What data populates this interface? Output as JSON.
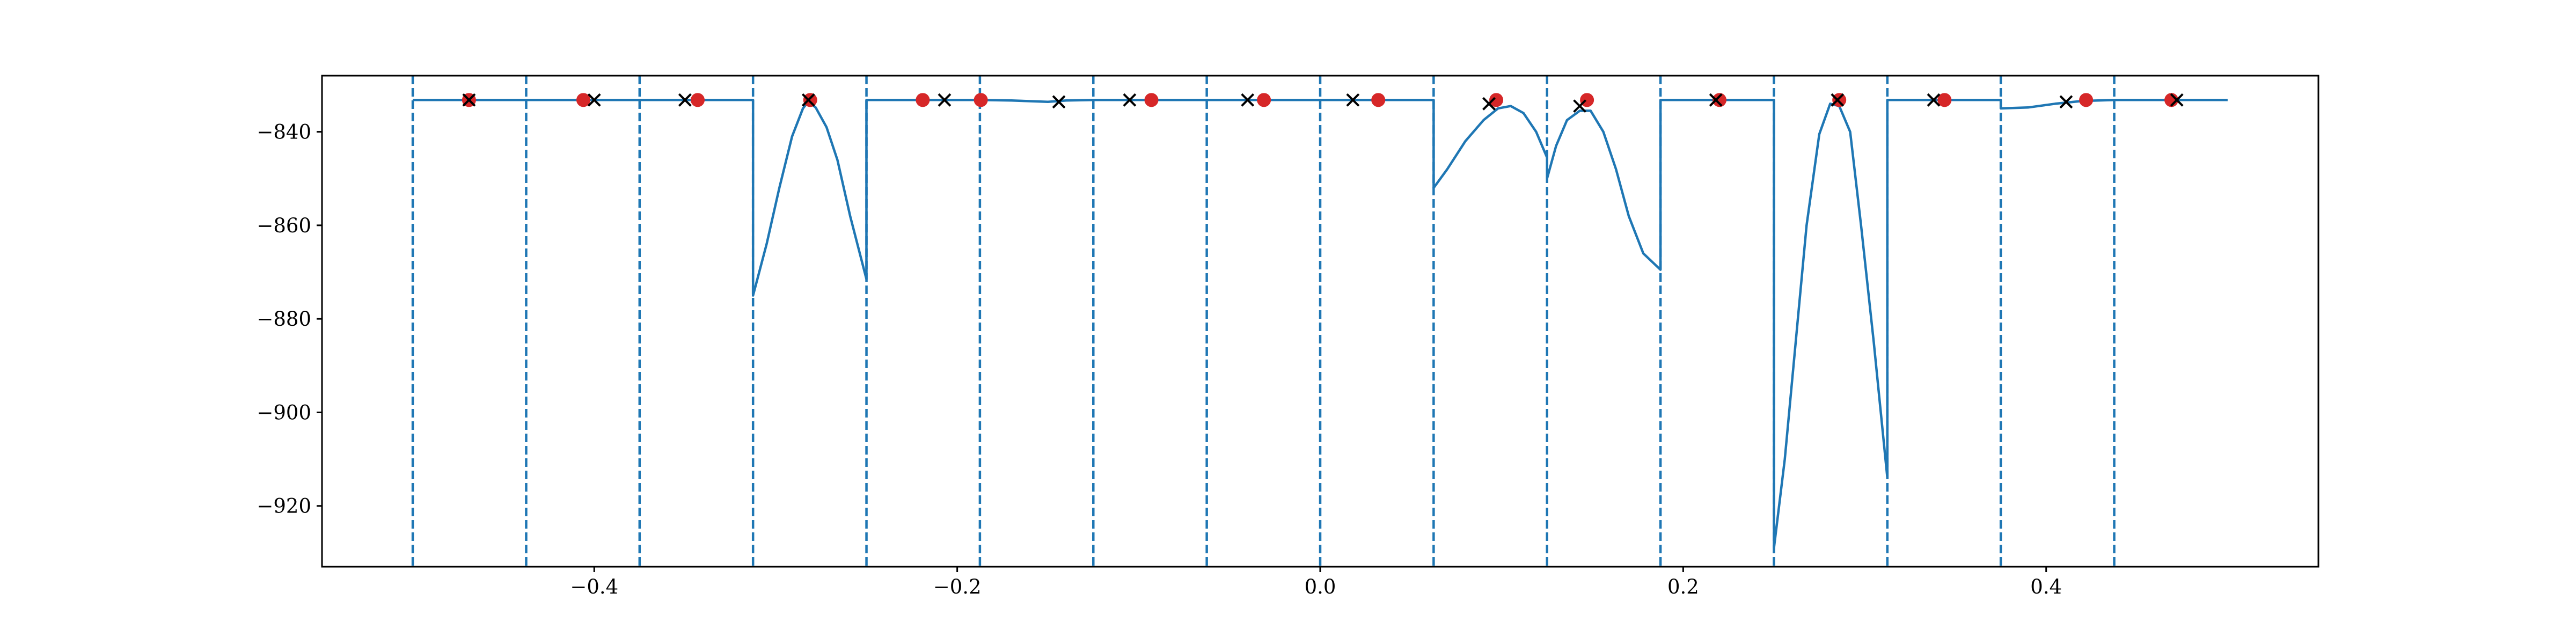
{
  "chart_data": {
    "type": "line",
    "title": "",
    "xlabel": "",
    "ylabel": "",
    "xlim": [
      -0.55,
      0.55
    ],
    "ylim": [
      -933,
      -828
    ],
    "grid": false,
    "legend": "none",
    "x_ticks": [
      -0.4,
      -0.2,
      0.0,
      0.2,
      0.4
    ],
    "x_tick_labels": [
      "−0.4",
      "−0.2",
      "0.0",
      "0.2",
      "0.4"
    ],
    "y_ticks": [
      -840,
      -860,
      -880,
      -900,
      -920
    ],
    "y_tick_labels": [
      "−840",
      "−860",
      "−880",
      "−900",
      "−920"
    ],
    "colors": {
      "line": "#1f77b4",
      "dashed": "#1f77b4",
      "dot": "#d62728",
      "cross": "#000000"
    },
    "series": [
      {
        "role": "curve",
        "points": [
          [
            -0.5,
            -833.2
          ],
          [
            -0.3125,
            -833.2
          ],
          [
            -0.3125,
            -875.0
          ],
          [
            -0.305,
            -864.0
          ],
          [
            -0.298,
            -852.0
          ],
          [
            -0.291,
            -841.0
          ],
          [
            -0.285,
            -835.0
          ],
          [
            -0.282,
            -833.5
          ],
          [
            -0.278,
            -834.8
          ],
          [
            -0.272,
            -839.0
          ],
          [
            -0.266,
            -846.0
          ],
          [
            -0.259,
            -858.0
          ],
          [
            -0.25,
            -871.5
          ],
          [
            -0.25,
            -833.2
          ],
          [
            -0.1875,
            -833.2
          ],
          [
            -0.17,
            -833.3
          ],
          [
            -0.15,
            -833.6
          ],
          [
            -0.14,
            -833.3
          ],
          [
            -0.125,
            -833.2
          ],
          [
            0.0625,
            -833.2
          ],
          [
            0.0625,
            -852.0
          ],
          [
            0.07,
            -848.0
          ],
          [
            0.08,
            -842.0
          ],
          [
            0.09,
            -837.5
          ],
          [
            0.098,
            -835.0
          ],
          [
            0.105,
            -834.5
          ],
          [
            0.112,
            -836.0
          ],
          [
            0.119,
            -840.0
          ],
          [
            0.125,
            -845.5
          ],
          [
            0.125,
            -850.0
          ],
          [
            0.13,
            -843.0
          ],
          [
            0.136,
            -837.5
          ],
          [
            0.143,
            -835.5
          ],
          [
            0.149,
            -835.5
          ],
          [
            0.156,
            -840.0
          ],
          [
            0.163,
            -848.0
          ],
          [
            0.17,
            -858.0
          ],
          [
            0.178,
            -866.0
          ],
          [
            0.1875,
            -869.5
          ],
          [
            0.1875,
            -833.2
          ],
          [
            0.25,
            -833.2
          ],
          [
            0.25,
            -929.0
          ],
          [
            0.256,
            -910.0
          ],
          [
            0.262,
            -885.0
          ],
          [
            0.268,
            -860.0
          ],
          [
            0.275,
            -840.5
          ],
          [
            0.281,
            -834.0
          ],
          [
            0.286,
            -834.5
          ],
          [
            0.292,
            -840.0
          ],
          [
            0.298,
            -860.0
          ],
          [
            0.305,
            -885.0
          ],
          [
            0.3125,
            -914.0
          ],
          [
            0.3125,
            -833.2
          ],
          [
            0.375,
            -833.2
          ],
          [
            0.375,
            -835.0
          ],
          [
            0.39,
            -834.8
          ],
          [
            0.405,
            -834.0
          ],
          [
            0.42,
            -833.4
          ],
          [
            0.4375,
            -833.2
          ],
          [
            0.5,
            -833.2
          ]
        ]
      }
    ],
    "segment_boundaries": [
      -0.5,
      -0.4375,
      -0.375,
      -0.3125,
      -0.25,
      -0.1875,
      -0.125,
      -0.0625,
      0.0,
      0.0625,
      0.125,
      0.1875,
      0.25,
      0.3125,
      0.375,
      0.4375
    ],
    "red_dots": [
      [
        -0.469,
        -833.2
      ],
      [
        -0.406,
        -833.2
      ],
      [
        -0.343,
        -833.2
      ],
      [
        -0.281,
        -833.2
      ],
      [
        -0.219,
        -833.2
      ],
      [
        -0.187,
        -833.2
      ],
      [
        -0.093,
        -833.2
      ],
      [
        -0.031,
        -833.2
      ],
      [
        0.032,
        -833.2
      ],
      [
        0.097,
        -833.2
      ],
      [
        0.147,
        -833.2
      ],
      [
        0.22,
        -833.2
      ],
      [
        0.286,
        -833.2
      ],
      [
        0.344,
        -833.2
      ],
      [
        0.422,
        -833.2
      ],
      [
        0.469,
        -833.2
      ]
    ],
    "black_crosses": [
      [
        -0.469,
        -833.2
      ],
      [
        -0.4,
        -833.2
      ],
      [
        -0.35,
        -833.2
      ],
      [
        -0.282,
        -833.2
      ],
      [
        -0.207,
        -833.2
      ],
      [
        -0.144,
        -833.6
      ],
      [
        -0.105,
        -833.2
      ],
      [
        -0.04,
        -833.2
      ],
      [
        0.018,
        -833.2
      ],
      [
        0.093,
        -834.0
      ],
      [
        0.143,
        -834.5
      ],
      [
        0.218,
        -833.2
      ],
      [
        0.285,
        -833.2
      ],
      [
        0.338,
        -833.2
      ],
      [
        0.411,
        -833.6
      ],
      [
        0.472,
        -833.2
      ]
    ]
  }
}
